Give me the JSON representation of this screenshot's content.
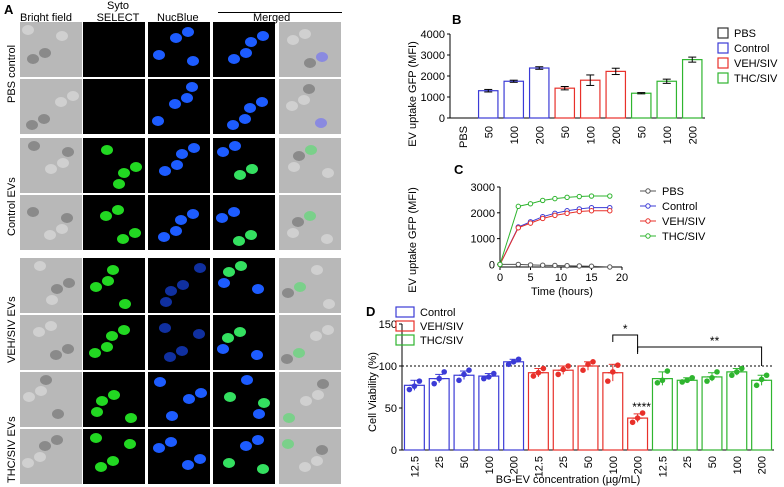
{
  "panels": {
    "A": {
      "label": "A",
      "columns": [
        "Bright field",
        "Syto SELECT",
        "NucBlue",
        "Merged"
      ],
      "column_syto_line1": "Syto",
      "column_syto_line2": "SELECT",
      "rows": [
        "PBS control",
        "Control EVs",
        "VEH/SIV EVs",
        "THC/SIV EVs"
      ]
    },
    "B": {
      "label": "B"
    },
    "C": {
      "label": "C"
    },
    "D": {
      "label": "D"
    }
  },
  "chart_data": [
    {
      "id": "B",
      "type": "bar",
      "ylabel": "EV uptake GFP (MFI)",
      "ylim": [
        0,
        4000
      ],
      "yticks": [
        0,
        1000,
        2000,
        3000,
        4000
      ],
      "categories": [
        "PBS",
        "50",
        "100",
        "200",
        "50",
        "100",
        "200",
        "50",
        "100",
        "200"
      ],
      "legend": [
        "PBS",
        "Control",
        "VEH/SIV",
        "THC/SIV"
      ],
      "colors": {
        "PBS": "#333333",
        "Control": "#3b3bd6",
        "VEH/SIV": "#e8302a",
        "THC/SIV": "#2fb52f"
      },
      "bars": [
        {
          "group": "PBS",
          "value": 0,
          "err": 0
        },
        {
          "group": "Control",
          "value": 1300,
          "err": 60
        },
        {
          "group": "Control",
          "value": 1750,
          "err": 50
        },
        {
          "group": "Control",
          "value": 2380,
          "err": 60
        },
        {
          "group": "VEH/SIV",
          "value": 1420,
          "err": 80
        },
        {
          "group": "VEH/SIV",
          "value": 1800,
          "err": 250
        },
        {
          "group": "VEH/SIV",
          "value": 2220,
          "err": 150
        },
        {
          "group": "THC/SIV",
          "value": 1180,
          "err": 30
        },
        {
          "group": "THC/SIV",
          "value": 1750,
          "err": 100
        },
        {
          "group": "THC/SIV",
          "value": 2780,
          "err": 120
        }
      ]
    },
    {
      "id": "C",
      "type": "line",
      "xlabel": "Time (hours)",
      "ylabel": "EV uptake GFP (MFI)",
      "xlim": [
        0,
        20
      ],
      "ylim": [
        -100,
        3000
      ],
      "xticks": [
        0,
        5,
        10,
        15,
        20
      ],
      "yticks": [
        0,
        1000,
        2000,
        3000
      ],
      "x": [
        0,
        3,
        5,
        7,
        9,
        11,
        13,
        15,
        18
      ],
      "series": [
        {
          "name": "PBS",
          "color": "#555555",
          "values": [
            0,
            0,
            -20,
            -30,
            -40,
            -50,
            -60,
            -70,
            -100
          ]
        },
        {
          "name": "Control",
          "color": "#3b3bd6",
          "values": [
            0,
            1450,
            1650,
            1850,
            1980,
            2080,
            2150,
            2200,
            2200
          ]
        },
        {
          "name": "VEH/SIV",
          "color": "#e8302a",
          "values": [
            0,
            1420,
            1600,
            1780,
            1900,
            1980,
            2050,
            2080,
            2080
          ]
        },
        {
          "name": "THC/SIV",
          "color": "#2fb52f",
          "values": [
            0,
            2250,
            2350,
            2480,
            2550,
            2600,
            2630,
            2650,
            2650
          ]
        }
      ]
    },
    {
      "id": "D",
      "type": "bar",
      "xlabel": "BG-EV concentration (µg/mL)",
      "ylabel": "Cell Viability (%)",
      "ylim": [
        0,
        150
      ],
      "yticks": [
        0,
        50,
        100,
        150
      ],
      "reference_line": 100,
      "categories": [
        "12.5",
        "25",
        "50",
        "100",
        "200",
        "12.5",
        "25",
        "50",
        "100",
        "200",
        "12.5",
        "25",
        "50",
        "100",
        "200"
      ],
      "legend": [
        "Control",
        "VEH/SIV",
        "THC/SIV"
      ],
      "colors": {
        "Control": "#3b3bd6",
        "VEH/SIV": "#e8302a",
        "THC/SIV": "#2fb52f"
      },
      "bars": [
        {
          "group": "Control",
          "value": 77,
          "err": 6,
          "points": [
            72,
            76,
            82
          ]
        },
        {
          "group": "Control",
          "value": 85,
          "err": 5,
          "points": [
            79,
            85,
            93
          ]
        },
        {
          "group": "Control",
          "value": 89,
          "err": 5,
          "points": [
            83,
            90,
            95
          ]
        },
        {
          "group": "Control",
          "value": 88,
          "err": 3,
          "points": [
            85,
            87,
            91
          ]
        },
        {
          "group": "Control",
          "value": 105,
          "err": 3,
          "points": [
            102,
            105,
            108
          ]
        },
        {
          "group": "VEH/SIV",
          "value": 92,
          "err": 5,
          "points": [
            88,
            92,
            97
          ]
        },
        {
          "group": "VEH/SIV",
          "value": 95,
          "err": 5,
          "points": [
            90,
            96,
            100
          ]
        },
        {
          "group": "VEH/SIV",
          "value": 100,
          "err": 5,
          "points": [
            95,
            102,
            105
          ]
        },
        {
          "group": "VEH/SIV",
          "value": 92,
          "err": 10,
          "points": [
            82,
            93,
            101
          ]
        },
        {
          "group": "VEH/SIV",
          "value": 38,
          "err": 5,
          "points": [
            33,
            38,
            44
          ]
        },
        {
          "group": "THC/SIV",
          "value": 85,
          "err": 8,
          "points": [
            80,
            83,
            94
          ]
        },
        {
          "group": "THC/SIV",
          "value": 83,
          "err": 3,
          "points": [
            81,
            83,
            86
          ]
        },
        {
          "group": "THC/SIV",
          "value": 87,
          "err": 5,
          "points": [
            82,
            86,
            93
          ]
        },
        {
          "group": "THC/SIV",
          "value": 93,
          "err": 4,
          "points": [
            89,
            93,
            97
          ]
        },
        {
          "group": "THC/SIV",
          "value": 83,
          "err": 6,
          "points": [
            77,
            84,
            89
          ]
        }
      ],
      "annotations": [
        "*",
        "**",
        "****"
      ]
    }
  ]
}
